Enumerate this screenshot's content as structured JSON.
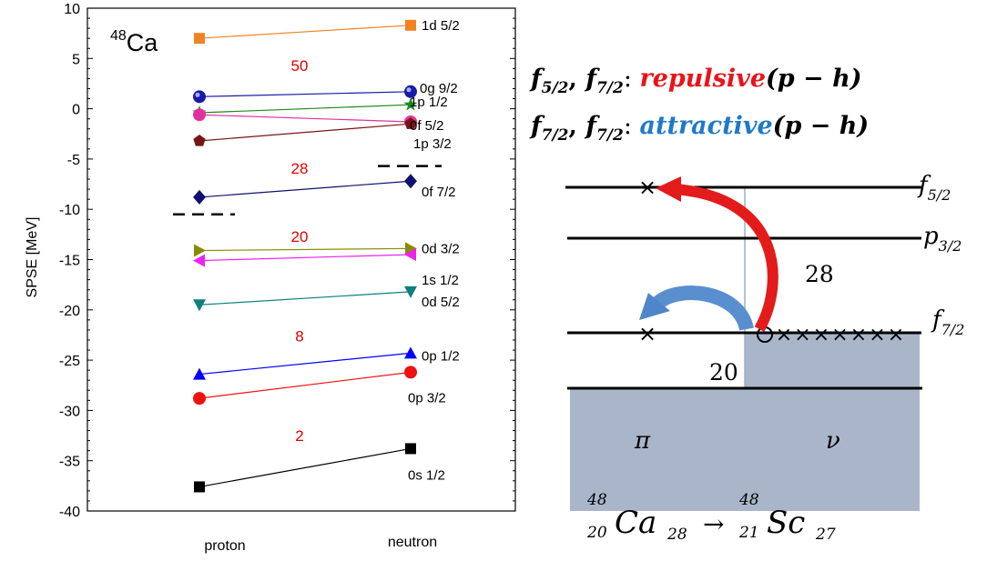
{
  "left_chart": {
    "chart_data": {
      "type": "line",
      "ylabel": "SPSE [MeV]",
      "inset_label": {
        "mass": "48",
        "element": "Ca"
      },
      "ylim": [
        -40,
        10
      ],
      "yticks": [
        "10",
        "5",
        "0",
        "-5",
        "-10",
        "-15",
        "-20",
        "-25",
        "-30",
        "-35",
        "-40"
      ],
      "categories": [
        "proton",
        "neutron"
      ],
      "series": [
        {
          "name": "1d 5/2",
          "marker": "square",
          "color": "#f28322",
          "values": [
            7.0,
            8.3
          ]
        },
        {
          "name": "0g 9/2",
          "marker": "sphere",
          "color": "#1a1aa8",
          "values": [
            1.2,
            1.7
          ]
        },
        {
          "name": "1p 1/2",
          "marker": "star",
          "color": "#1a8a1a",
          "values": [
            -0.4,
            0.4
          ]
        },
        {
          "name": "0f 5/2",
          "marker": "hexagon",
          "color": "#e0329f",
          "values": [
            -0.6,
            -1.3
          ]
        },
        {
          "name": "1p 3/2",
          "marker": "pentagon",
          "color": "#7a1414",
          "values": [
            -3.2,
            -1.5
          ]
        },
        {
          "name": "0f 7/2",
          "marker": "diamond",
          "color": "#101070",
          "values": [
            -8.8,
            -7.2
          ]
        },
        {
          "name": "0d 3/2",
          "marker": "tri-right",
          "color": "#8a8a00",
          "values": [
            -14.1,
            -13.9
          ]
        },
        {
          "name": "1s 1/2",
          "marker": "tri-left",
          "color": "#ee22ee",
          "values": [
            -15.1,
            -14.5
          ]
        },
        {
          "name": "0d 5/2",
          "marker": "tri-down",
          "color": "#0f7f7f",
          "values": [
            -19.5,
            -18.2
          ]
        },
        {
          "name": "0p 1/2",
          "marker": "tri-up",
          "color": "#0000ff",
          "values": [
            -26.4,
            -24.3
          ]
        },
        {
          "name": "0p 3/2",
          "marker": "circle",
          "color": "#ee1111",
          "values": [
            -28.8,
            -26.2
          ]
        },
        {
          "name": "0s 1/2",
          "marker": "square",
          "color": "#000000",
          "values": [
            -37.6,
            -33.8
          ]
        }
      ],
      "magic_numbers": [
        {
          "label": "50",
          "y": 4.3
        },
        {
          "label": "28",
          "y": -5.9
        },
        {
          "label": "20",
          "y": -12.7
        },
        {
          "label": "8",
          "y": -22.6
        },
        {
          "label": "2",
          "y": -32.5
        }
      ],
      "fermi_levels": [
        {
          "side": "proton",
          "y": -10.5
        },
        {
          "side": "neutron",
          "y": -5.7
        }
      ]
    }
  },
  "right_panel": {
    "text_line1": {
      "part1": "f",
      "sub1": "5/2",
      "sep": ", ",
      "part2": "f",
      "sub2": "7/2",
      "colon": ": ",
      "keyword": "repulsive",
      "tail": "(p − h)",
      "keyword_color": "#e8141a"
    },
    "text_line2": {
      "part1": "f",
      "sub1": "7/2",
      "sep": ", ",
      "part2": "f",
      "sub2": "7/2",
      "colon": ": ",
      "keyword": "attractive",
      "tail": "(p − h)",
      "keyword_color": "#1f79c9"
    },
    "level_labels": [
      {
        "letter": "f",
        "sub": "5/2"
      },
      {
        "letter": "p",
        "sub": "3/2"
      },
      {
        "letter": "f",
        "sub": "7/2"
      }
    ],
    "gap_label_28": "28",
    "gap_label_20": "20",
    "pi_label": "π",
    "nu_label": "ν",
    "hole_symbol": "×",
    "fill_color": "#a9b6ca",
    "reaction": {
      "lhs_mass": "48",
      "lhs_z": "20",
      "lhs_sym": "Ca",
      "lhs_n": "28",
      "arrow": "→",
      "rhs_mass": "48",
      "rhs_z": "21",
      "rhs_sym": "Sc",
      "rhs_n": "27"
    }
  }
}
